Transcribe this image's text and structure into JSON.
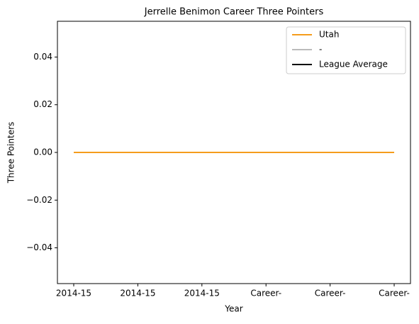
{
  "chart_data": {
    "type": "line",
    "title": "Jerrelle Benimon Career Three Pointers",
    "xlabel": "Year",
    "ylabel": "Three Pointers",
    "categories": [
      "2014-15",
      "2014-15",
      "2014-15",
      "Career-",
      "Career-",
      "Career-"
    ],
    "series": [
      {
        "name": "Utah",
        "color": "#f59c1c",
        "values": [
          0,
          0,
          0,
          0,
          0,
          0
        ]
      },
      {
        "name": "-",
        "color": "#bbbbbb",
        "values": [
          0,
          0,
          0,
          0,
          0,
          0
        ]
      },
      {
        "name": "League Average",
        "color": "#000000",
        "values": [
          0,
          0,
          0,
          0,
          0,
          0
        ]
      }
    ],
    "ylim": [
      -0.055,
      0.055
    ],
    "yticks": [
      {
        "value": -0.04,
        "label": "−0.04"
      },
      {
        "value": -0.02,
        "label": "−0.02"
      },
      {
        "value": 0,
        "label": "0.00"
      },
      {
        "value": 0.02,
        "label": "0.02"
      },
      {
        "value": 0.04,
        "label": "0.04"
      }
    ],
    "legend": "upper right"
  }
}
